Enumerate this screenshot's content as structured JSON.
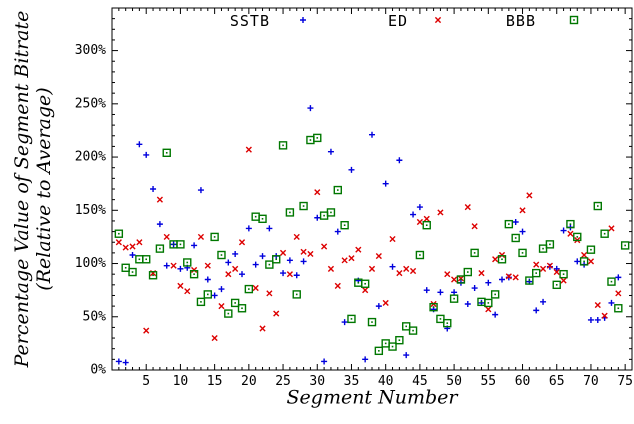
{
  "chart_data": {
    "type": "scatter",
    "title": "",
    "xlabel": "Segment Number",
    "ylabel": "Percentage Value of Segment Bitrate",
    "ylabel_sub": "(Relative to Average)",
    "xlim": [
      0,
      76
    ],
    "ylim": [
      0,
      340
    ],
    "xticks": [
      5,
      10,
      15,
      20,
      25,
      30,
      35,
      40,
      45,
      50,
      55,
      60,
      65,
      70,
      75
    ],
    "xtick_labels": [
      "5",
      "10",
      "15",
      "20",
      "25",
      "30",
      "35",
      "40",
      "45",
      "50",
      "55",
      "60",
      "65",
      "70",
      "75"
    ],
    "yticks": [
      0,
      50,
      100,
      150,
      200,
      250,
      300
    ],
    "ytick_labels": [
      "0%",
      "50%",
      "100%",
      "150%",
      "200%",
      "250%",
      "300%"
    ],
    "grid": false,
    "legend_position": "top",
    "series": [
      {
        "name": "SSTB",
        "marker": "plus",
        "color": "#0000dd",
        "points": [
          [
            1,
            8
          ],
          [
            2,
            7
          ],
          [
            3,
            108
          ],
          [
            4,
            212
          ],
          [
            5,
            202
          ],
          [
            6,
            170
          ],
          [
            7,
            137
          ],
          [
            8,
            98
          ],
          [
            9,
            118
          ],
          [
            10,
            95
          ],
          [
            11,
            96
          ],
          [
            12,
            117
          ],
          [
            13,
            169
          ],
          [
            14,
            85
          ],
          [
            15,
            70
          ],
          [
            16,
            76
          ],
          [
            17,
            101
          ],
          [
            18,
            109
          ],
          [
            19,
            90
          ],
          [
            20,
            133
          ],
          [
            21,
            99
          ],
          [
            22,
            107
          ],
          [
            23,
            133
          ],
          [
            24,
            107
          ],
          [
            25,
            91
          ],
          [
            26,
            103
          ],
          [
            27,
            89
          ],
          [
            28,
            102
          ],
          [
            29,
            246
          ],
          [
            30,
            143
          ],
          [
            31,
            8
          ],
          [
            32,
            205
          ],
          [
            33,
            130
          ],
          [
            34,
            45
          ],
          [
            35,
            188
          ],
          [
            36,
            84
          ],
          [
            37,
            10
          ],
          [
            38,
            221
          ],
          [
            39,
            60
          ],
          [
            40,
            175
          ],
          [
            41,
            97
          ],
          [
            42,
            197
          ],
          [
            43,
            14
          ],
          [
            44,
            146
          ],
          [
            45,
            153
          ],
          [
            46,
            75
          ],
          [
            47,
            57
          ],
          [
            48,
            73
          ],
          [
            49,
            39
          ],
          [
            50,
            73
          ],
          [
            51,
            82
          ],
          [
            52,
            62
          ],
          [
            53,
            77
          ],
          [
            54,
            63
          ],
          [
            55,
            82
          ],
          [
            56,
            52
          ],
          [
            57,
            85
          ],
          [
            58,
            87
          ],
          [
            59,
            139
          ],
          [
            60,
            130
          ],
          [
            61,
            83
          ],
          [
            62,
            56
          ],
          [
            63,
            64
          ],
          [
            64,
            97
          ],
          [
            65,
            95
          ],
          [
            66,
            131
          ],
          [
            67,
            134
          ],
          [
            68,
            102
          ],
          [
            69,
            99
          ],
          [
            70,
            47
          ],
          [
            71,
            47
          ],
          [
            72,
            49
          ],
          [
            73,
            63
          ],
          [
            74,
            87
          ]
        ]
      },
      {
        "name": "ED",
        "marker": "cross",
        "color": "#dd0000",
        "points": [
          [
            1,
            120
          ],
          [
            2,
            115
          ],
          [
            3,
            116
          ],
          [
            4,
            120
          ],
          [
            5,
            37
          ],
          [
            6,
            91
          ],
          [
            7,
            160
          ],
          [
            8,
            125
          ],
          [
            9,
            98
          ],
          [
            10,
            79
          ],
          [
            11,
            74
          ],
          [
            12,
            94
          ],
          [
            13,
            125
          ],
          [
            14,
            98
          ],
          [
            15,
            30
          ],
          [
            16,
            60
          ],
          [
            17,
            90
          ],
          [
            18,
            95
          ],
          [
            19,
            120
          ],
          [
            20,
            207
          ],
          [
            21,
            77
          ],
          [
            22,
            39
          ],
          [
            23,
            72
          ],
          [
            24,
            53
          ],
          [
            25,
            110
          ],
          [
            26,
            90
          ],
          [
            27,
            125
          ],
          [
            28,
            111
          ],
          [
            29,
            109
          ],
          [
            30,
            167
          ],
          [
            31,
            116
          ],
          [
            32,
            95
          ],
          [
            33,
            79
          ],
          [
            34,
            103
          ],
          [
            35,
            105
          ],
          [
            36,
            113
          ],
          [
            37,
            75
          ],
          [
            38,
            95
          ],
          [
            39,
            107
          ],
          [
            40,
            63
          ],
          [
            41,
            123
          ],
          [
            42,
            91
          ],
          [
            43,
            95
          ],
          [
            44,
            93
          ],
          [
            45,
            139
          ],
          [
            46,
            142
          ],
          [
            47,
            62
          ],
          [
            48,
            148
          ],
          [
            49,
            90
          ],
          [
            50,
            85
          ],
          [
            51,
            86
          ],
          [
            52,
            153
          ],
          [
            53,
            135
          ],
          [
            54,
            91
          ],
          [
            55,
            57
          ],
          [
            56,
            104
          ],
          [
            57,
            108
          ],
          [
            58,
            88
          ],
          [
            59,
            87
          ],
          [
            60,
            150
          ],
          [
            61,
            164
          ],
          [
            62,
            99
          ],
          [
            63,
            95
          ],
          [
            64,
            98
          ],
          [
            65,
            92
          ],
          [
            66,
            84
          ],
          [
            67,
            128
          ],
          [
            68,
            122
          ],
          [
            69,
            108
          ],
          [
            70,
            102
          ],
          [
            71,
            61
          ],
          [
            72,
            51
          ],
          [
            73,
            133
          ],
          [
            74,
            72
          ]
        ]
      },
      {
        "name": "BBB",
        "marker": "square",
        "color": "#007700",
        "points": [
          [
            1,
            128
          ],
          [
            2,
            96
          ],
          [
            3,
            92
          ],
          [
            4,
            104
          ],
          [
            5,
            104
          ],
          [
            6,
            89
          ],
          [
            7,
            114
          ],
          [
            8,
            204
          ],
          [
            9,
            118
          ],
          [
            10,
            118
          ],
          [
            11,
            101
          ],
          [
            12,
            90
          ],
          [
            13,
            64
          ],
          [
            14,
            71
          ],
          [
            15,
            125
          ],
          [
            16,
            108
          ],
          [
            17,
            53
          ],
          [
            18,
            63
          ],
          [
            19,
            58
          ],
          [
            20,
            76
          ],
          [
            21,
            144
          ],
          [
            22,
            142
          ],
          [
            23,
            99
          ],
          [
            24,
            104
          ],
          [
            25,
            211
          ],
          [
            26,
            148
          ],
          [
            27,
            71
          ],
          [
            28,
            154
          ],
          [
            29,
            216
          ],
          [
            30,
            218
          ],
          [
            31,
            145
          ],
          [
            32,
            148
          ],
          [
            33,
            169
          ],
          [
            34,
            136
          ],
          [
            35,
            48
          ],
          [
            36,
            82
          ],
          [
            37,
            81
          ],
          [
            38,
            45
          ],
          [
            39,
            18
          ],
          [
            40,
            25
          ],
          [
            41,
            22
          ],
          [
            42,
            28
          ],
          [
            43,
            41
          ],
          [
            44,
            37
          ],
          [
            45,
            108
          ],
          [
            46,
            136
          ],
          [
            47,
            59
          ],
          [
            48,
            48
          ],
          [
            49,
            44
          ],
          [
            50,
            67
          ],
          [
            51,
            85
          ],
          [
            52,
            92
          ],
          [
            53,
            110
          ],
          [
            54,
            64
          ],
          [
            55,
            63
          ],
          [
            56,
            71
          ],
          [
            57,
            104
          ],
          [
            58,
            137
          ],
          [
            59,
            124
          ],
          [
            60,
            110
          ],
          [
            61,
            84
          ],
          [
            62,
            91
          ],
          [
            63,
            114
          ],
          [
            64,
            118
          ],
          [
            65,
            80
          ],
          [
            66,
            90
          ],
          [
            67,
            137
          ],
          [
            68,
            125
          ],
          [
            69,
            102
          ],
          [
            70,
            113
          ],
          [
            71,
            154
          ],
          [
            72,
            128
          ],
          [
            73,
            83
          ],
          [
            74,
            58
          ],
          [
            75,
            117
          ]
        ]
      }
    ]
  }
}
